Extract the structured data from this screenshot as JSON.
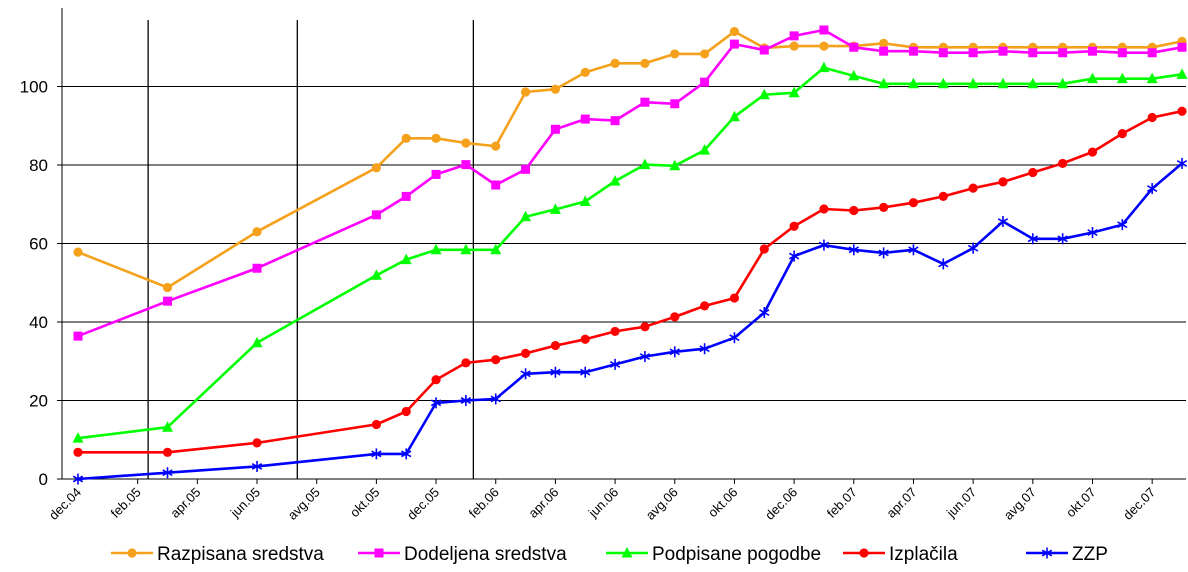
{
  "chart_data": {
    "type": "line",
    "title": "",
    "xlabel": "",
    "ylabel": "",
    "ylim": [
      0,
      120
    ],
    "y_ticks": [
      0,
      20,
      40,
      60,
      80,
      100
    ],
    "grid": "horizontal",
    "legend_position": "bottom",
    "x_tick_labels": [
      "dec.04",
      "feb.05",
      "apr.05",
      "jun.05",
      "avg.05",
      "okt.05",
      "dec.05",
      "feb.06",
      "apr.06",
      "jun.06",
      "avg.06",
      "okt.06",
      "dec.06",
      "feb.07",
      "apr.07",
      "jun.07",
      "avg.07",
      "okt.07",
      "dec.07"
    ],
    "x_range_months": [
      0,
      37
    ],
    "vertical_markers_months": [
      2.35,
      7.35,
      13.25
    ],
    "series": [
      {
        "name": "Razpisana sredstva",
        "color": "#F5A11C",
        "marker": "circle",
        "x": [
          0,
          3,
          6,
          10,
          11,
          12,
          13,
          14,
          15,
          16,
          17,
          18,
          19,
          20,
          21,
          22,
          23,
          24,
          25,
          26,
          27,
          28,
          29,
          30,
          31,
          32,
          33,
          34,
          35,
          36,
          37
        ],
        "y": [
          57.8,
          48.8,
          63,
          79.3,
          86.8,
          86.8,
          85.6,
          84.8,
          98.6,
          99.3,
          103.6,
          105.9,
          105.9,
          108.3,
          108.3,
          114,
          109.8,
          110.3,
          110.3,
          110.3,
          111,
          110,
          110,
          110,
          110,
          110,
          110,
          110,
          110,
          110,
          111.5
        ]
      },
      {
        "name": "Dodeljena sredstva",
        "color": "#FF00FF",
        "marker": "square",
        "x": [
          0,
          3,
          6,
          10,
          11,
          12,
          13,
          14,
          15,
          16,
          17,
          18,
          19,
          20,
          21,
          22,
          23,
          24,
          25,
          26,
          27,
          28,
          29,
          30,
          31,
          32,
          33,
          34,
          35,
          36,
          37
        ],
        "y": [
          36.4,
          45.3,
          53.7,
          67.3,
          72,
          77.6,
          80.1,
          74.9,
          78.9,
          89.1,
          91.7,
          91.3,
          96,
          95.6,
          101.1,
          110.8,
          109.3,
          112.9,
          114.4,
          110,
          109,
          109,
          108.6,
          108.6,
          109,
          108.6,
          108.6,
          109,
          108.6,
          108.6,
          110
        ]
      },
      {
        "name": "Podpisane pogodbe",
        "color": "#00FF00",
        "marker": "triangle",
        "x": [
          0,
          3,
          6,
          10,
          11,
          12,
          13,
          14,
          15,
          16,
          17,
          18,
          19,
          20,
          21,
          22,
          23,
          24,
          25,
          26,
          27,
          28,
          29,
          30,
          31,
          32,
          33,
          34,
          35,
          36,
          37
        ],
        "y": [
          10.4,
          13.2,
          34.7,
          51.9,
          55.9,
          58.4,
          58.4,
          58.4,
          66.8,
          68.7,
          70.7,
          75.9,
          80.1,
          79.8,
          83.8,
          92.3,
          97.9,
          98.4,
          104.8,
          102.7,
          100.7,
          100.7,
          100.7,
          100.7,
          100.7,
          100.7,
          100.7,
          102,
          102,
          102,
          103.1
        ]
      },
      {
        "name": "Izplačila",
        "color": "#FF0000",
        "marker": "circle",
        "x": [
          0,
          3,
          6,
          10,
          11,
          12,
          13,
          14,
          15,
          16,
          17,
          18,
          19,
          20,
          21,
          22,
          23,
          24,
          25,
          26,
          27,
          28,
          29,
          30,
          31,
          32,
          33,
          34,
          35,
          36,
          37
        ],
        "y": [
          6.8,
          6.8,
          9.2,
          13.9,
          17.2,
          25.3,
          29.6,
          30.4,
          32,
          34,
          35.6,
          37.6,
          38.8,
          41.3,
          44.1,
          46.1,
          58.6,
          64.4,
          68.8,
          68.4,
          69.2,
          70.4,
          72,
          74.1,
          75.7,
          78.1,
          80.4,
          83.3,
          88,
          92.1,
          93.7
        ]
      },
      {
        "name": "ZZP",
        "color": "#0000FF",
        "marker": "star",
        "x": [
          0,
          3,
          6,
          10,
          11,
          12,
          13,
          14,
          15,
          16,
          17,
          18,
          19,
          20,
          21,
          22,
          23,
          24,
          25,
          26,
          27,
          28,
          29,
          30,
          31,
          32,
          33,
          34,
          35,
          36,
          37
        ],
        "y": [
          0,
          1.6,
          3.2,
          6.4,
          6.4,
          19.4,
          20,
          20.4,
          26.8,
          27.2,
          27.2,
          29.2,
          31.2,
          32.4,
          33.2,
          36,
          42.4,
          56.8,
          59.6,
          58.4,
          57.6,
          58.4,
          54.8,
          58.8,
          65.6,
          61.2,
          61.2,
          62.8,
          64.8,
          74,
          80.4
        ]
      }
    ]
  }
}
